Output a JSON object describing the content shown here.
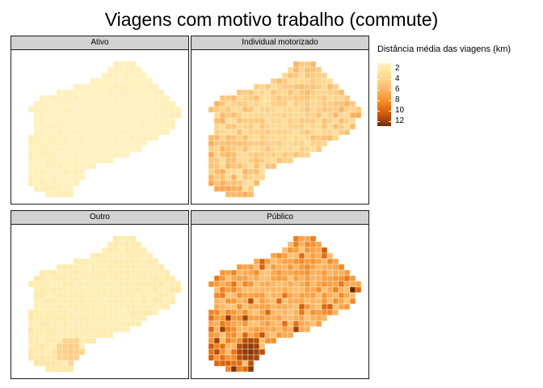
{
  "title": "Viagens com motivo trabalho (commute)",
  "legend": {
    "title": "Distância média das viagens (km)",
    "ticks": [
      "2",
      "4",
      "6",
      "8",
      "10",
      "12"
    ],
    "range": [
      1,
      13
    ]
  },
  "colors": {
    "scale": [
      "#fff5cc",
      "#fee9a8",
      "#fdd08a",
      "#fcb565",
      "#fa9a3a",
      "#ee7a1a",
      "#cf5a0a",
      "#9a3d05",
      "#652304"
    ],
    "strip": "#d2d2d2"
  },
  "panels": [
    {
      "label": "Ativo",
      "level": 1.5,
      "spread": 0.35,
      "hotspot": 0
    },
    {
      "label": "Individual motorizado",
      "level": 3.6,
      "spread": 1.8,
      "hotspot": 0
    },
    {
      "label": "Outro",
      "level": 1.9,
      "spread": 0.6,
      "hotspot": 4.5
    },
    {
      "label": "Público",
      "level": 5.5,
      "spread": 2.8,
      "hotspot": 12.5
    }
  ]
}
